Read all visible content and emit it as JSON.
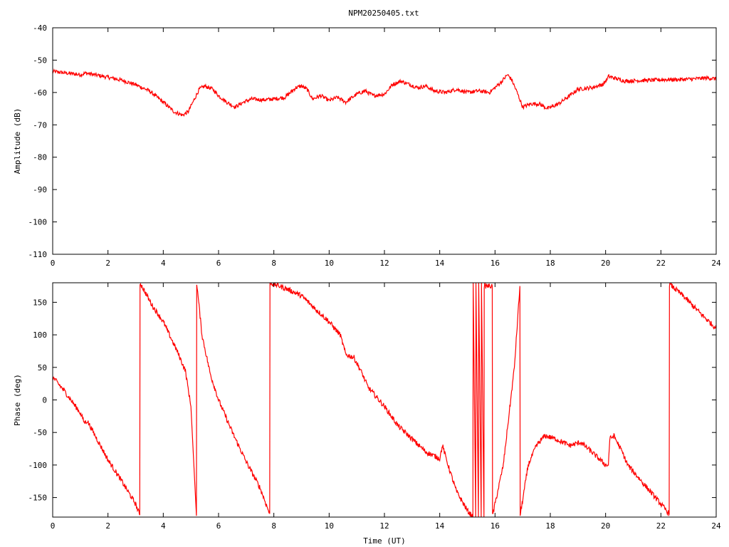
{
  "title": "NPM20250405.txt",
  "colors": {
    "series": "#ff0000",
    "axes": "#000000",
    "background": "#ffffff"
  },
  "chart_data": [
    {
      "type": "line",
      "xlabel": "",
      "ylabel": "Amplitude (dB)",
      "xlim": [
        0,
        24
      ],
      "ylim": [
        -110,
        -40
      ],
      "xticks": [
        "0",
        "2",
        "4",
        "6",
        "8",
        "10",
        "12",
        "14",
        "16",
        "18",
        "20",
        "22",
        "24"
      ],
      "yticks": [
        "-40",
        "-50",
        "-60",
        "-70",
        "-80",
        "-90",
        "-100",
        "-110"
      ],
      "grid": false,
      "noise_db": 0.6,
      "series": [
        {
          "x": [
            0,
            0.5,
            1.0,
            1.2,
            1.5,
            2.0,
            2.5,
            3.0,
            3.5,
            4.0,
            4.4,
            4.7,
            4.9,
            5.1,
            5.3,
            5.5,
            5.8,
            6.0,
            6.3,
            6.6,
            6.9,
            7.2,
            7.6,
            8.0,
            8.4,
            8.8,
            9.0,
            9.2,
            9.4,
            9.7,
            10.0,
            10.3,
            10.6,
            11.0,
            11.3,
            11.6,
            12.0,
            12.3,
            12.6,
            12.9,
            13.2,
            13.5,
            13.8,
            14.2,
            14.6,
            15.0,
            15.4,
            15.8,
            16.0,
            16.2,
            16.45,
            16.6,
            16.8,
            17.0,
            17.3,
            17.6,
            17.9,
            18.3,
            18.7,
            19.0,
            19.5,
            19.9,
            20.05,
            20.1,
            20.3,
            20.7,
            21.2,
            21.7,
            22.2,
            22.7,
            23.2,
            23.7,
            24.0
          ],
          "y": [
            -53.5,
            -54.0,
            -54.5,
            -54.0,
            -54.5,
            -55.3,
            -56.2,
            -57.6,
            -59.5,
            -63.0,
            -66.0,
            -67.0,
            -66.0,
            -62.5,
            -59.0,
            -58.0,
            -59.0,
            -61.0,
            -63.0,
            -64.5,
            -63.0,
            -62.0,
            -62.3,
            -62.0,
            -61.5,
            -58.5,
            -58.0,
            -59.0,
            -62.0,
            -61.0,
            -62.5,
            -61.5,
            -63.0,
            -60.5,
            -59.5,
            -61.0,
            -60.5,
            -57.5,
            -56.5,
            -57.5,
            -58.5,
            -58.0,
            -59.5,
            -60.0,
            -59.0,
            -60.0,
            -59.5,
            -60.0,
            -58.5,
            -57.0,
            -54.5,
            -56.0,
            -60.0,
            -64.5,
            -63.5,
            -63.5,
            -65.0,
            -63.5,
            -61.0,
            -59.0,
            -58.5,
            -57.5,
            -56.0,
            -55.0,
            -55.5,
            -56.5,
            -56.3,
            -56.2,
            -56.0,
            -56.0,
            -55.8,
            -55.5,
            -55.8
          ]
        }
      ]
    },
    {
      "type": "line",
      "xlabel": "Time (UT)",
      "ylabel": "Phase (deg)",
      "xlim": [
        0,
        24
      ],
      "ylim": [
        -180,
        180
      ],
      "xticks": [
        "0",
        "2",
        "4",
        "6",
        "8",
        "10",
        "12",
        "14",
        "16",
        "18",
        "20",
        "22",
        "24"
      ],
      "yticks": [
        "150",
        "100",
        "50",
        "0",
        "-50",
        "-100",
        "-150"
      ],
      "grid": false,
      "noise_deg": 4,
      "series": [
        {
          "x": [
            0,
            0.4,
            1.0,
            1.15,
            1.25,
            1.5,
            2.0,
            2.5,
            3.0,
            3.15,
            3.16,
            3.6,
            4.0,
            4.5,
            4.8,
            5.0,
            5.2,
            5.21,
            5.4,
            5.7,
            6.0,
            6.5,
            7.0,
            7.5,
            7.85,
            7.86,
            8.2,
            8.5,
            9.0,
            9.5,
            10.0,
            10.4,
            10.6,
            10.9,
            11.2,
            11.4,
            11.6,
            12.0,
            12.5,
            13.0,
            13.5,
            14.0,
            14.1,
            14.3,
            14.6,
            15.0,
            15.2,
            15.21,
            15.3,
            15.31,
            15.4,
            15.41,
            15.5,
            15.51,
            15.6,
            15.61,
            15.7,
            15.9,
            15.91,
            16.3,
            16.7,
            16.9,
            16.91,
            17.2,
            17.5,
            17.8,
            18.2,
            18.7,
            19.1,
            19.5,
            20.0,
            20.1,
            20.15,
            20.3,
            20.6,
            20.8,
            21.0,
            21.5,
            22.0,
            22.3,
            22.31,
            22.8,
            23.5,
            24.0
          ],
          "y": [
            35,
            15,
            -20,
            -35,
            -32,
            -52,
            -92,
            -125,
            -160,
            -177,
            180,
            145,
            120,
            75,
            45,
            -10,
            -178,
            180,
            100,
            40,
            0,
            -50,
            -95,
            -135,
            -175,
            180,
            175,
            170,
            160,
            140,
            120,
            100,
            70,
            65,
            40,
            20,
            10,
            -10,
            -40,
            -60,
            -80,
            -90,
            -70,
            -100,
            -140,
            -170,
            -180,
            180,
            -180,
            180,
            -180,
            180,
            -180,
            180,
            -180,
            175,
            175,
            175,
            -178,
            -100,
            50,
            175,
            -178,
            -100,
            -70,
            -55,
            -60,
            -70,
            -65,
            -80,
            -100,
            -100,
            -60,
            -55,
            -80,
            -100,
            -110,
            -135,
            -160,
            -175,
            178,
            160,
            130,
            110
          ]
        }
      ]
    }
  ]
}
